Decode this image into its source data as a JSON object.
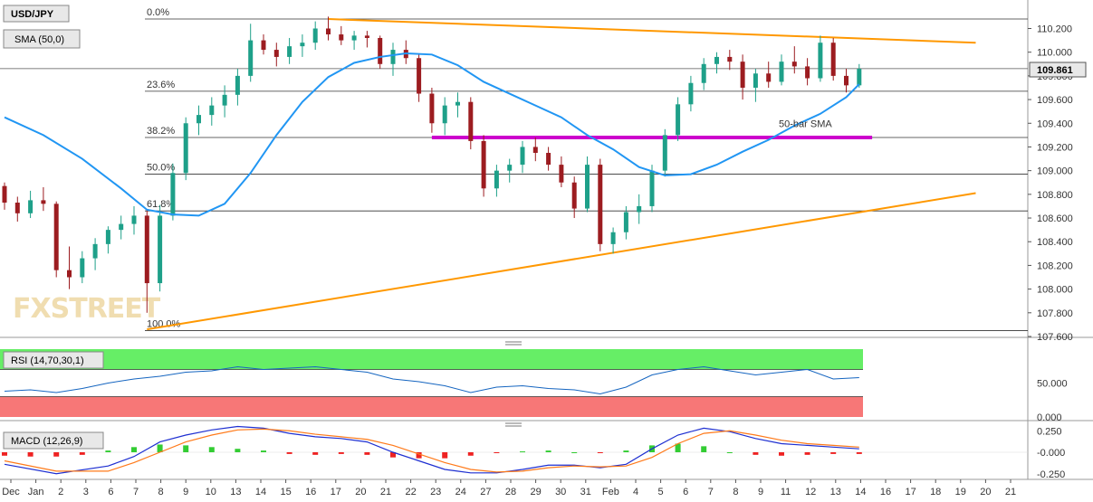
{
  "colors": {
    "up": "#1ea089",
    "down": "#9c1c20",
    "sma": "#2196f3",
    "trend": "#ff9800",
    "support": "#cc00cc",
    "rsi_line": "#1565c0",
    "macd_line": "#1e2fd1",
    "signal_line": "#ff7a1a",
    "hist_pos": "#33cc33",
    "hist_neg": "#ee2222",
    "rsi_over": "#66ee66",
    "rsi_under": "#f77777"
  },
  "chart_data": [
    {
      "type": "candlestick",
      "symbol_label": "USD/JPY",
      "indicator_label": "SMA (50,0)",
      "watermark": "FXSTREET",
      "last_price": "109.861",
      "ylim": [
        107.6,
        110.3
      ],
      "price_ticks": [
        "110.200",
        "110.000",
        "109.800",
        "109.600",
        "109.400",
        "109.200",
        "109.000",
        "108.800",
        "108.600",
        "108.400",
        "108.200",
        "108.000",
        "107.800",
        "107.600"
      ],
      "x_ticks": [
        "Dec",
        "Jan",
        "2",
        "3",
        "6",
        "7",
        "8",
        "9",
        "10",
        "13",
        "14",
        "15",
        "16",
        "17",
        "20",
        "21",
        "22",
        "23",
        "24",
        "27",
        "28",
        "29",
        "30",
        "31",
        "Feb",
        "4",
        "5",
        "6",
        "7",
        "8",
        "9",
        "11",
        "12",
        "13",
        "14",
        "16",
        "17",
        "18",
        "19",
        "20",
        "21"
      ],
      "fib_levels": [
        {
          "label": "0.0%",
          "value": 110.28
        },
        {
          "label": "23.6%",
          "value": 109.67
        },
        {
          "label": "38.2%",
          "value": 109.28
        },
        {
          "label": "50.0%",
          "value": 108.97
        },
        {
          "label": "61.8%",
          "value": 108.66
        },
        {
          "label": "100.0%",
          "value": 107.65
        }
      ],
      "annotations": [
        {
          "text": "50-bar SMA",
          "x": 30,
          "y": 109.32
        }
      ],
      "support_zone": {
        "x_start": 16.5,
        "x_end": 33.5,
        "y": 109.28
      },
      "trendlines": [
        {
          "name": "resistance",
          "x1": 12.5,
          "y1": 110.28,
          "x2": 37.5,
          "y2": 110.08
        },
        {
          "name": "support",
          "x1": 5.5,
          "y1": 107.66,
          "x2": 37.5,
          "y2": 108.81
        }
      ],
      "sma": [
        [
          0,
          109.45
        ],
        [
          1.5,
          109.3
        ],
        [
          3,
          109.1
        ],
        [
          4.5,
          108.85
        ],
        [
          5.5,
          108.67
        ],
        [
          6.5,
          108.63
        ],
        [
          7.5,
          108.62
        ],
        [
          8.5,
          108.72
        ],
        [
          9.5,
          108.98
        ],
        [
          10.5,
          109.3
        ],
        [
          11.5,
          109.58
        ],
        [
          12.5,
          109.79
        ],
        [
          13.5,
          109.91
        ],
        [
          14.5,
          109.96
        ],
        [
          15.5,
          109.99
        ],
        [
          16.5,
          109.98
        ],
        [
          17.5,
          109.89
        ],
        [
          18.5,
          109.75
        ],
        [
          19.5,
          109.65
        ],
        [
          20.5,
          109.55
        ],
        [
          21.5,
          109.45
        ],
        [
          22.5,
          109.3
        ],
        [
          23.5,
          109.18
        ],
        [
          24.5,
          109.03
        ],
        [
          25.5,
          108.96
        ],
        [
          26.5,
          108.97
        ],
        [
          27.5,
          109.05
        ],
        [
          28.5,
          109.16
        ],
        [
          29.5,
          109.26
        ],
        [
          30.5,
          109.38
        ],
        [
          31.5,
          109.48
        ],
        [
          32.5,
          109.62
        ],
        [
          33.0,
          109.73
        ]
      ],
      "candles": [
        [
          0,
          108.87,
          108.9,
          108.67,
          108.73
        ],
        [
          0.5,
          108.73,
          108.78,
          108.57,
          108.64
        ],
        [
          1,
          108.64,
          108.83,
          108.6,
          108.75
        ],
        [
          1.5,
          108.75,
          108.86,
          108.66,
          108.72
        ],
        [
          2,
          108.72,
          108.74,
          108.1,
          108.16
        ],
        [
          2.5,
          108.16,
          108.36,
          108.0,
          108.1
        ],
        [
          3,
          108.1,
          108.32,
          108.05,
          108.26
        ],
        [
          3.5,
          108.26,
          108.43,
          108.16,
          108.38
        ],
        [
          4,
          108.38,
          108.53,
          108.3,
          108.5
        ],
        [
          4.5,
          108.5,
          108.62,
          108.42,
          108.55
        ],
        [
          5,
          108.55,
          108.7,
          108.46,
          108.62
        ],
        [
          5.5,
          108.62,
          108.67,
          107.8,
          108.05
        ],
        [
          6,
          108.05,
          108.71,
          107.98,
          108.62
        ],
        [
          6.5,
          108.62,
          109.06,
          108.58,
          108.98
        ],
        [
          7,
          108.98,
          109.45,
          108.92,
          109.4
        ],
        [
          7.5,
          109.4,
          109.55,
          109.3,
          109.47
        ],
        [
          8,
          109.47,
          109.62,
          109.38,
          109.55
        ],
        [
          8.5,
          109.55,
          109.72,
          109.45,
          109.64
        ],
        [
          9,
          109.64,
          109.86,
          109.55,
          109.8
        ],
        [
          9.5,
          109.8,
          110.24,
          109.75,
          110.1
        ],
        [
          10,
          110.1,
          110.15,
          109.98,
          110.02
        ],
        [
          10.5,
          110.02,
          110.08,
          109.88,
          109.96
        ],
        [
          11,
          109.96,
          110.12,
          109.9,
          110.05
        ],
        [
          11.5,
          110.05,
          110.15,
          109.96,
          110.08
        ],
        [
          12,
          110.08,
          110.26,
          110.02,
          110.2
        ],
        [
          12.5,
          110.2,
          110.3,
          110.1,
          110.15
        ],
        [
          13,
          110.15,
          110.22,
          110.06,
          110.1
        ],
        [
          13.5,
          110.1,
          110.18,
          110.02,
          110.14
        ],
        [
          14,
          110.14,
          110.18,
          110.04,
          110.12
        ],
        [
          14.5,
          110.12,
          110.14,
          109.86,
          109.9
        ],
        [
          15,
          109.9,
          110.08,
          109.8,
          110.02
        ],
        [
          15.5,
          110.02,
          110.1,
          109.9,
          109.95
        ],
        [
          16,
          109.95,
          109.98,
          109.58,
          109.65
        ],
        [
          16.5,
          109.65,
          109.7,
          109.32,
          109.4
        ],
        [
          17,
          109.4,
          109.62,
          109.3,
          109.55
        ],
        [
          17.5,
          109.55,
          109.66,
          109.45,
          109.58
        ],
        [
          18,
          109.58,
          109.62,
          109.18,
          109.25
        ],
        [
          18.5,
          109.25,
          109.3,
          108.78,
          108.85
        ],
        [
          19,
          108.85,
          109.05,
          108.78,
          109.0
        ],
        [
          19.5,
          109.0,
          109.1,
          108.9,
          109.05
        ],
        [
          20,
          109.05,
          109.25,
          108.98,
          109.2
        ],
        [
          20.5,
          109.2,
          109.28,
          109.08,
          109.15
        ],
        [
          21,
          109.15,
          109.2,
          109.0,
          109.05
        ],
        [
          21.5,
          109.05,
          109.12,
          108.86,
          108.9
        ],
        [
          22,
          108.9,
          108.95,
          108.6,
          108.68
        ],
        [
          22.5,
          108.68,
          109.12,
          108.65,
          109.05
        ],
        [
          23,
          109.05,
          109.1,
          108.32,
          108.38
        ],
        [
          23.5,
          108.38,
          108.52,
          108.3,
          108.48
        ],
        [
          24,
          108.48,
          108.7,
          108.42,
          108.65
        ],
        [
          24.5,
          108.65,
          108.8,
          108.55,
          108.7
        ],
        [
          25,
          108.7,
          109.05,
          108.65,
          109.0
        ],
        [
          25.5,
          109.0,
          109.35,
          108.95,
          109.3
        ],
        [
          26,
          109.3,
          109.62,
          109.25,
          109.56
        ],
        [
          26.5,
          109.56,
          109.8,
          109.5,
          109.74
        ],
        [
          27,
          109.74,
          109.95,
          109.68,
          109.9
        ],
        [
          27.5,
          109.9,
          110.0,
          109.82,
          109.96
        ],
        [
          28,
          109.96,
          110.02,
          109.85,
          109.92
        ],
        [
          28.5,
          109.92,
          109.98,
          109.6,
          109.7
        ],
        [
          29,
          109.7,
          109.86,
          109.58,
          109.82
        ],
        [
          29.5,
          109.82,
          109.92,
          109.7,
          109.75
        ],
        [
          30,
          109.75,
          109.98,
          109.72,
          109.92
        ],
        [
          30.5,
          109.92,
          110.05,
          109.82,
          109.88
        ],
        [
          31,
          109.88,
          109.95,
          109.72,
          109.78
        ],
        [
          31.5,
          109.78,
          110.14,
          109.75,
          110.08
        ],
        [
          32,
          110.08,
          110.12,
          109.76,
          109.8
        ],
        [
          32.5,
          109.8,
          109.86,
          109.66,
          109.72
        ],
        [
          33,
          109.72,
          109.9,
          109.7,
          109.86
        ]
      ]
    },
    {
      "type": "line",
      "indicator_label": "RSI (14,70,30,1)",
      "ylim": [
        0,
        100
      ],
      "y_ticks": [
        "50.000",
        "0.000"
      ],
      "overbought": 70,
      "oversold": 30,
      "values": [
        [
          0,
          38
        ],
        [
          1,
          40
        ],
        [
          2,
          36
        ],
        [
          3,
          42
        ],
        [
          4,
          50
        ],
        [
          5,
          56
        ],
        [
          6,
          60
        ],
        [
          7,
          66
        ],
        [
          8,
          68
        ],
        [
          9,
          74
        ],
        [
          10,
          70
        ],
        [
          11,
          72
        ],
        [
          12,
          74
        ],
        [
          13,
          70
        ],
        [
          14,
          66
        ],
        [
          15,
          56
        ],
        [
          16,
          52
        ],
        [
          17,
          46
        ],
        [
          18,
          36
        ],
        [
          19,
          44
        ],
        [
          20,
          46
        ],
        [
          21,
          42
        ],
        [
          22,
          40
        ],
        [
          23,
          34
        ],
        [
          24,
          44
        ],
        [
          25,
          62
        ],
        [
          26,
          70
        ],
        [
          27,
          74
        ],
        [
          28,
          68
        ],
        [
          29,
          62
        ],
        [
          30,
          66
        ],
        [
          31,
          70
        ],
        [
          32,
          56
        ],
        [
          33,
          58
        ]
      ]
    },
    {
      "type": "histogram",
      "indicator_label": "MACD (12,26,9)",
      "ylim": [
        -0.3,
        0.33
      ],
      "y_ticks": [
        "0.250",
        "-0.000",
        "-0.250"
      ],
      "macd": [
        [
          0,
          -0.14
        ],
        [
          2,
          -0.25
        ],
        [
          4,
          -0.16
        ],
        [
          5,
          -0.05
        ],
        [
          6,
          0.12
        ],
        [
          7,
          0.2
        ],
        [
          8,
          0.26
        ],
        [
          9,
          0.3
        ],
        [
          10,
          0.28
        ],
        [
          11,
          0.22
        ],
        [
          12,
          0.18
        ],
        [
          13,
          0.16
        ],
        [
          14,
          0.12
        ],
        [
          15,
          0.0
        ],
        [
          16,
          -0.1
        ],
        [
          17,
          -0.2
        ],
        [
          18,
          -0.24
        ],
        [
          19,
          -0.24
        ],
        [
          20,
          -0.2
        ],
        [
          21,
          -0.15
        ],
        [
          22,
          -0.15
        ],
        [
          23,
          -0.18
        ],
        [
          24,
          -0.14
        ],
        [
          25,
          0.04
        ],
        [
          26,
          0.2
        ],
        [
          27,
          0.28
        ],
        [
          28,
          0.24
        ],
        [
          29,
          0.16
        ],
        [
          30,
          0.1
        ],
        [
          31,
          0.08
        ],
        [
          32,
          0.06
        ],
        [
          33,
          0.04
        ]
      ],
      "signal": [
        [
          0,
          -0.1
        ],
        [
          2,
          -0.22
        ],
        [
          4,
          -0.22
        ],
        [
          5,
          -0.12
        ],
        [
          6,
          0.0
        ],
        [
          7,
          0.12
        ],
        [
          8,
          0.2
        ],
        [
          9,
          0.26
        ],
        [
          10,
          0.27
        ],
        [
          11,
          0.25
        ],
        [
          12,
          0.21
        ],
        [
          13,
          0.18
        ],
        [
          14,
          0.15
        ],
        [
          15,
          0.08
        ],
        [
          16,
          -0.02
        ],
        [
          17,
          -0.12
        ],
        [
          18,
          -0.2
        ],
        [
          19,
          -0.23
        ],
        [
          20,
          -0.22
        ],
        [
          21,
          -0.18
        ],
        [
          22,
          -0.16
        ],
        [
          23,
          -0.17
        ],
        [
          24,
          -0.16
        ],
        [
          25,
          -0.06
        ],
        [
          26,
          0.1
        ],
        [
          27,
          0.22
        ],
        [
          28,
          0.25
        ],
        [
          29,
          0.2
        ],
        [
          30,
          0.14
        ],
        [
          31,
          0.1
        ],
        [
          32,
          0.08
        ],
        [
          33,
          0.06
        ]
      ],
      "histogram": [
        [
          0,
          -0.04
        ],
        [
          1,
          -0.05
        ],
        [
          2,
          -0.05
        ],
        [
          3,
          -0.03
        ],
        [
          4,
          0.02
        ],
        [
          5,
          0.06
        ],
        [
          6,
          0.09
        ],
        [
          7,
          0.08
        ],
        [
          8,
          0.06
        ],
        [
          9,
          0.04
        ],
        [
          10,
          0.02
        ],
        [
          11,
          -0.02
        ],
        [
          12,
          -0.03
        ],
        [
          13,
          -0.02
        ],
        [
          14,
          -0.03
        ],
        [
          15,
          -0.06
        ],
        [
          16,
          -0.07
        ],
        [
          17,
          -0.07
        ],
        [
          18,
          -0.04
        ],
        [
          19,
          -0.01
        ],
        [
          20,
          0.01
        ],
        [
          21,
          0.02
        ],
        [
          22,
          0.0
        ],
        [
          23,
          -0.01
        ],
        [
          24,
          0.02
        ],
        [
          25,
          0.08
        ],
        [
          26,
          0.1
        ],
        [
          27,
          0.07
        ],
        [
          28,
          0.0
        ],
        [
          29,
          -0.03
        ],
        [
          30,
          -0.04
        ],
        [
          31,
          -0.03
        ],
        [
          32,
          -0.02
        ],
        [
          33,
          -0.02
        ]
      ]
    }
  ]
}
